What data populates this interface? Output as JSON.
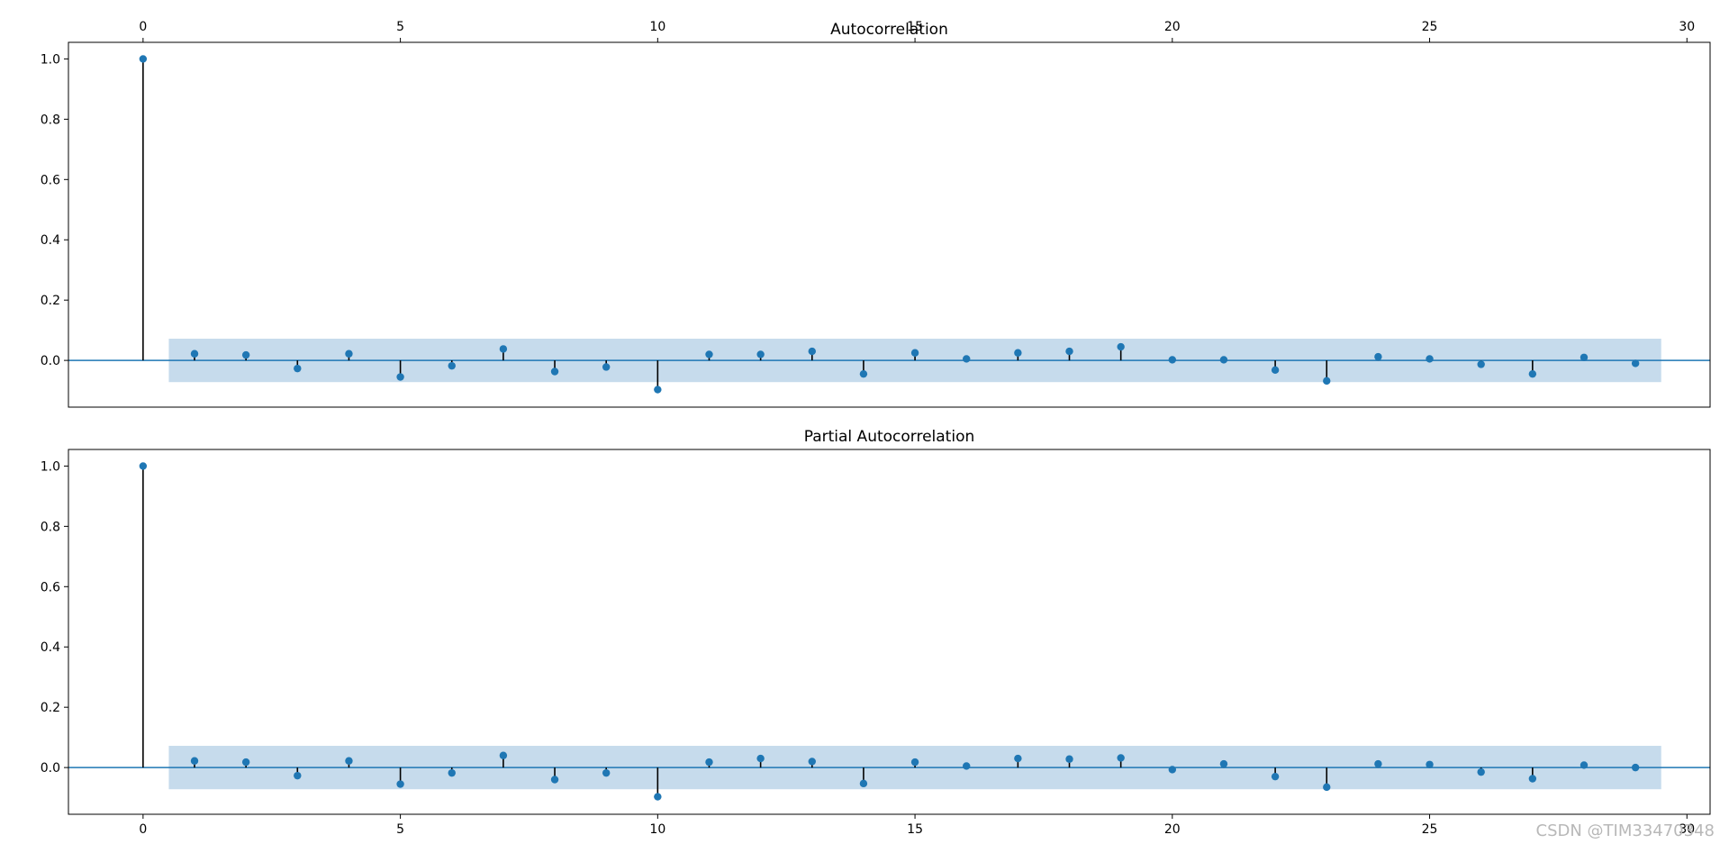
{
  "watermark": "CSDN @TIM33470348",
  "colors": {
    "marker": "#1f77b4",
    "stem": "#000000",
    "band": "#c6dbec",
    "zero": "#1f77b4"
  },
  "chart_data": [
    {
      "type": "stem",
      "title": "Autocorrelation",
      "xlabel": "",
      "ylabel": "",
      "xlim": [
        -1.45,
        30.45
      ],
      "ylim": [
        -0.155,
        1.055
      ],
      "xticks": [
        0,
        5,
        10,
        15,
        20,
        25,
        30
      ],
      "yticks": [
        0.0,
        0.2,
        0.4,
        0.6,
        0.8,
        1.0
      ],
      "ytick_labels": [
        "0.0",
        "0.2",
        "0.4",
        "0.6",
        "0.8",
        "1.0"
      ],
      "xtick_position": "top",
      "confidence_band": {
        "x": [
          0.5,
          29.5
        ],
        "lower": -0.072,
        "upper": 0.072
      },
      "x": [
        0,
        1,
        2,
        3,
        4,
        5,
        6,
        7,
        8,
        9,
        10,
        11,
        12,
        13,
        14,
        15,
        16,
        17,
        18,
        19,
        20,
        21,
        22,
        23,
        24,
        25,
        26,
        27,
        28,
        29
      ],
      "values": [
        1.0,
        0.022,
        0.018,
        -0.027,
        0.022,
        -0.055,
        -0.018,
        0.038,
        -0.037,
        -0.022,
        -0.097,
        0.02,
        0.02,
        0.03,
        -0.045,
        0.025,
        0.005,
        0.025,
        0.03,
        0.045,
        0.002,
        0.002,
        -0.032,
        -0.068,
        0.012,
        0.005,
        -0.013,
        -0.045,
        0.01,
        -0.01
      ]
    },
    {
      "type": "stem",
      "title": "Partial Autocorrelation",
      "xlabel": "",
      "ylabel": "",
      "xlim": [
        -1.45,
        30.45
      ],
      "ylim": [
        -0.155,
        1.055
      ],
      "xticks": [
        0,
        5,
        10,
        15,
        20,
        25,
        30
      ],
      "yticks": [
        0.0,
        0.2,
        0.4,
        0.6,
        0.8,
        1.0
      ],
      "ytick_labels": [
        "0.0",
        "0.2",
        "0.4",
        "0.6",
        "0.8",
        "1.0"
      ],
      "xtick_position": "bottom",
      "confidence_band": {
        "x": [
          0.5,
          29.5
        ],
        "lower": -0.072,
        "upper": 0.072
      },
      "x": [
        0,
        1,
        2,
        3,
        4,
        5,
        6,
        7,
        8,
        9,
        10,
        11,
        12,
        13,
        14,
        15,
        16,
        17,
        18,
        19,
        20,
        21,
        22,
        23,
        24,
        25,
        26,
        27,
        28,
        29
      ],
      "values": [
        1.0,
        0.022,
        0.018,
        -0.027,
        0.022,
        -0.055,
        -0.018,
        0.04,
        -0.04,
        -0.018,
        -0.097,
        0.018,
        0.03,
        0.02,
        -0.053,
        0.018,
        0.005,
        0.03,
        0.028,
        0.032,
        -0.007,
        0.012,
        -0.03,
        -0.065,
        0.012,
        0.01,
        -0.015,
        -0.037,
        0.008,
        0.0
      ]
    }
  ]
}
